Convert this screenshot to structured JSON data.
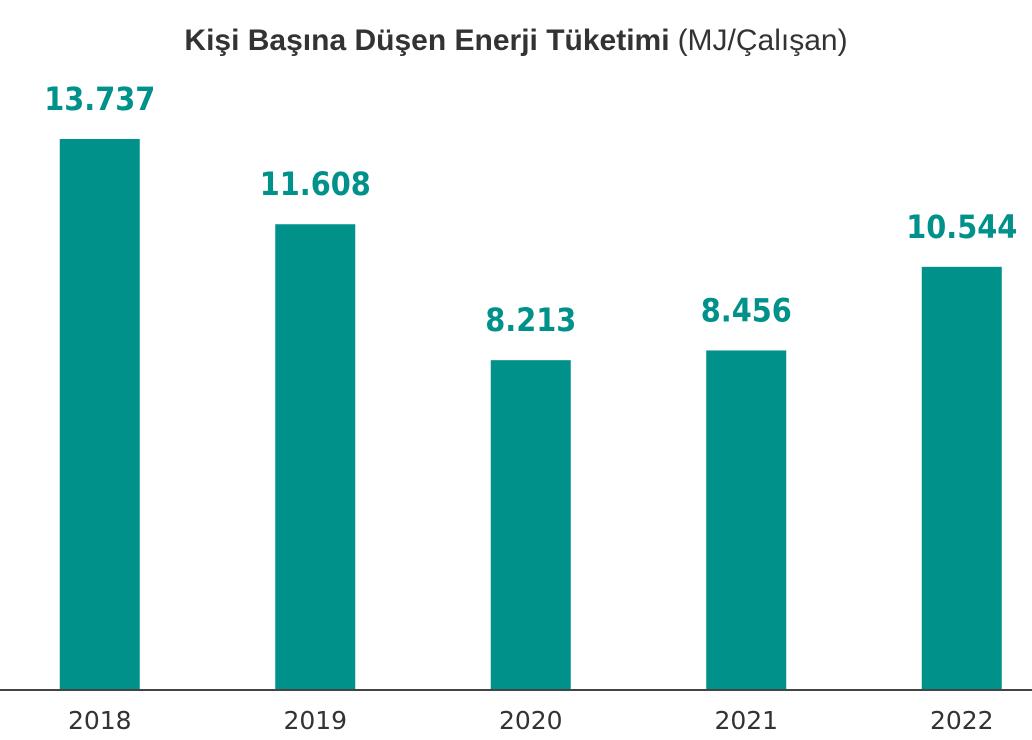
{
  "chart_data": {
    "type": "bar",
    "title": "Kişi Başına Düşen Enerji Tüketimi",
    "title_unit": "(MJ/Çalışan)",
    "categories": [
      "2018",
      "2019",
      "2020",
      "2021",
      "2022"
    ],
    "values": [
      13737,
      11608,
      8213,
      8456,
      10544
    ],
    "value_labels": [
      "13.737",
      "11.608",
      "8.213",
      "8.456",
      "10.544"
    ],
    "color": "#00918a"
  }
}
